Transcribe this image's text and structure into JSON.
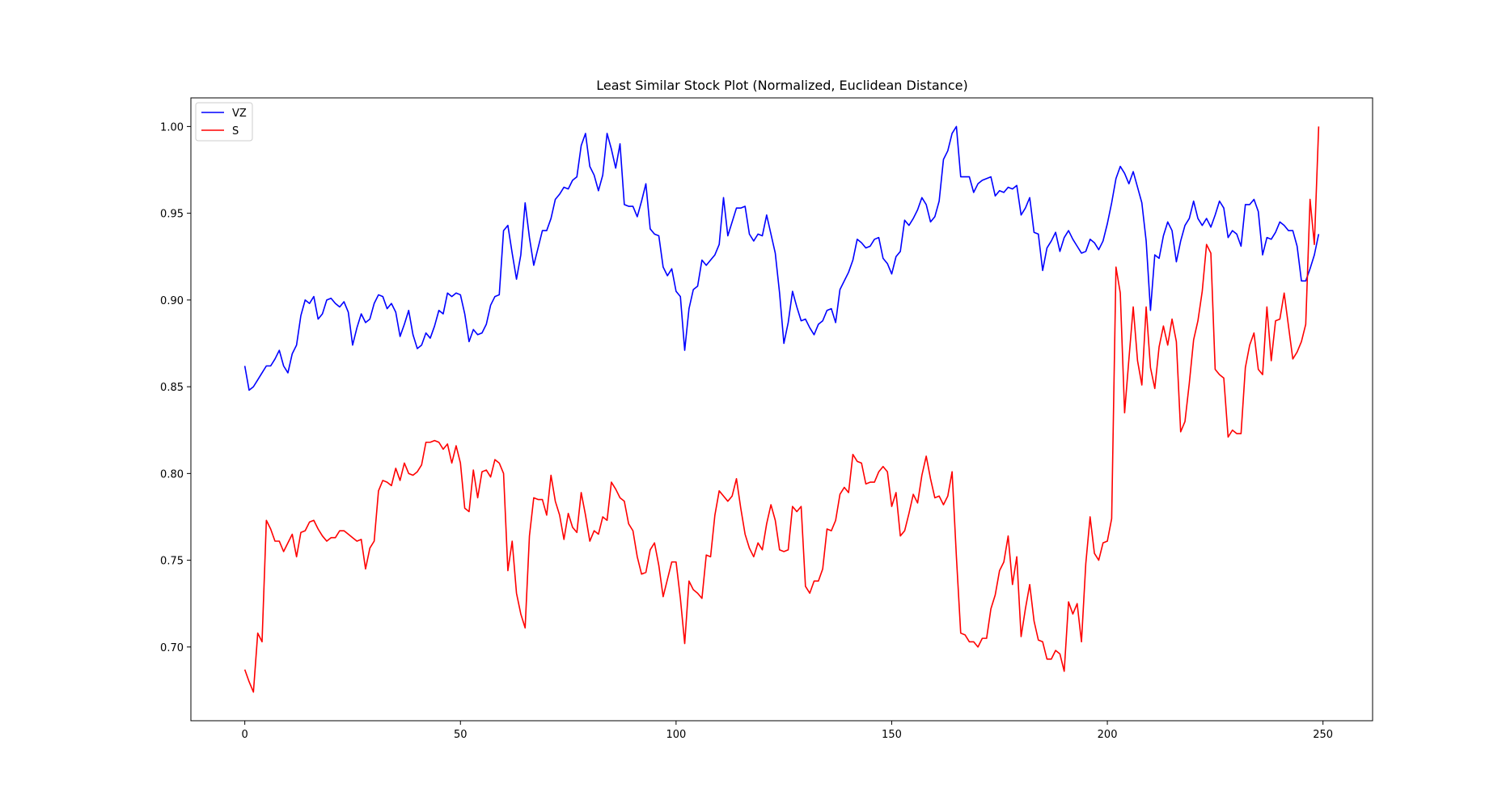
{
  "chart_data": {
    "type": "line",
    "title": "Least Similar Stock Plot (Normalized, Euclidean Distance)",
    "xlabel": "",
    "ylabel": "",
    "xlim": [
      -12.5,
      261.5
    ],
    "ylim": [
      0.6575,
      1.0165
    ],
    "x_ticks": [
      0,
      50,
      100,
      150,
      200,
      250
    ],
    "y_ticks": [
      0.7,
      0.75,
      0.8,
      0.85,
      0.9,
      0.95,
      1.0
    ],
    "x_tick_labels": [
      "0",
      "50",
      "100",
      "150",
      "200",
      "250"
    ],
    "y_tick_labels": [
      "0.70",
      "0.75",
      "0.80",
      "0.85",
      "0.90",
      "0.95",
      "1.00"
    ],
    "grid": false,
    "legend_position": "top-left",
    "x_start": 0,
    "series": [
      {
        "name": "VZ",
        "color": "#0000ff",
        "values": [
          0.862,
          0.848,
          0.85,
          0.854,
          0.858,
          0.862,
          0.862,
          0.866,
          0.871,
          0.862,
          0.858,
          0.869,
          0.874,
          0.891,
          0.9,
          0.898,
          0.902,
          0.889,
          0.892,
          0.9,
          0.901,
          0.898,
          0.896,
          0.899,
          0.893,
          0.874,
          0.884,
          0.892,
          0.887,
          0.889,
          0.898,
          0.903,
          0.902,
          0.895,
          0.898,
          0.893,
          0.879,
          0.886,
          0.894,
          0.88,
          0.872,
          0.874,
          0.881,
          0.878,
          0.885,
          0.894,
          0.892,
          0.904,
          0.902,
          0.904,
          0.903,
          0.892,
          0.876,
          0.883,
          0.88,
          0.881,
          0.886,
          0.897,
          0.902,
          0.903,
          0.94,
          0.943,
          0.927,
          0.912,
          0.926,
          0.956,
          0.936,
          0.92,
          0.93,
          0.94,
          0.94,
          0.947,
          0.958,
          0.961,
          0.965,
          0.964,
          0.969,
          0.971,
          0.989,
          0.996,
          0.977,
          0.972,
          0.963,
          0.972,
          0.996,
          0.987,
          0.976,
          0.99,
          0.955,
          0.954,
          0.954,
          0.948,
          0.957,
          0.967,
          0.941,
          0.938,
          0.937,
          0.919,
          0.914,
          0.918,
          0.905,
          0.902,
          0.871,
          0.895,
          0.906,
          0.908,
          0.923,
          0.92,
          0.923,
          0.926,
          0.932,
          0.959,
          0.937,
          0.945,
          0.953,
          0.953,
          0.954,
          0.938,
          0.934,
          0.938,
          0.937,
          0.949,
          0.938,
          0.927,
          0.904,
          0.875,
          0.887,
          0.905,
          0.896,
          0.888,
          0.889,
          0.884,
          0.88,
          0.886,
          0.888,
          0.894,
          0.895,
          0.887,
          0.906,
          0.911,
          0.916,
          0.923,
          0.935,
          0.933,
          0.93,
          0.931,
          0.935,
          0.936,
          0.924,
          0.921,
          0.915,
          0.925,
          0.928,
          0.946,
          0.943,
          0.947,
          0.952,
          0.959,
          0.955,
          0.945,
          0.948,
          0.957,
          0.981,
          0.986,
          0.996,
          1.0,
          0.971,
          0.971,
          0.971,
          0.962,
          0.967,
          0.969,
          0.97,
          0.971,
          0.96,
          0.963,
          0.962,
          0.965,
          0.964,
          0.966,
          0.949,
          0.953,
          0.959,
          0.939,
          0.938,
          0.917,
          0.93,
          0.934,
          0.939,
          0.928,
          0.936,
          0.94,
          0.935,
          0.931,
          0.927,
          0.928,
          0.935,
          0.933,
          0.929,
          0.934,
          0.944,
          0.956,
          0.97,
          0.977,
          0.973,
          0.967,
          0.974,
          0.965,
          0.956,
          0.934,
          0.894,
          0.926,
          0.924,
          0.937,
          0.945,
          0.94,
          0.922,
          0.934,
          0.943,
          0.947,
          0.957,
          0.947,
          0.943,
          0.947,
          0.942,
          0.949,
          0.957,
          0.953,
          0.936,
          0.94,
          0.938,
          0.931,
          0.955,
          0.955,
          0.958,
          0.951,
          0.926,
          0.936,
          0.935,
          0.939,
          0.945,
          0.943,
          0.94,
          0.94,
          0.931,
          0.911,
          0.911,
          0.918,
          0.926,
          0.938
        ]
      },
      {
        "name": "S",
        "color": "#ff0000",
        "values": [
          0.687,
          0.68,
          0.674,
          0.708,
          0.703,
          0.773,
          0.768,
          0.761,
          0.761,
          0.755,
          0.76,
          0.765,
          0.752,
          0.766,
          0.767,
          0.772,
          0.773,
          0.768,
          0.764,
          0.761,
          0.763,
          0.763,
          0.767,
          0.767,
          0.765,
          0.763,
          0.761,
          0.762,
          0.745,
          0.757,
          0.761,
          0.79,
          0.796,
          0.795,
          0.793,
          0.803,
          0.796,
          0.806,
          0.8,
          0.799,
          0.801,
          0.805,
          0.818,
          0.818,
          0.819,
          0.818,
          0.814,
          0.817,
          0.806,
          0.816,
          0.806,
          0.78,
          0.778,
          0.802,
          0.786,
          0.801,
          0.802,
          0.798,
          0.808,
          0.806,
          0.8,
          0.744,
          0.761,
          0.731,
          0.719,
          0.711,
          0.764,
          0.786,
          0.785,
          0.785,
          0.776,
          0.799,
          0.784,
          0.776,
          0.762,
          0.777,
          0.769,
          0.766,
          0.789,
          0.776,
          0.761,
          0.767,
          0.765,
          0.775,
          0.773,
          0.795,
          0.791,
          0.786,
          0.784,
          0.771,
          0.767,
          0.752,
          0.742,
          0.743,
          0.756,
          0.76,
          0.747,
          0.729,
          0.739,
          0.749,
          0.749,
          0.728,
          0.702,
          0.738,
          0.733,
          0.731,
          0.728,
          0.753,
          0.752,
          0.776,
          0.79,
          0.787,
          0.784,
          0.787,
          0.797,
          0.78,
          0.765,
          0.757,
          0.752,
          0.76,
          0.756,
          0.771,
          0.782,
          0.773,
          0.756,
          0.755,
          0.756,
          0.781,
          0.778,
          0.781,
          0.735,
          0.731,
          0.738,
          0.738,
          0.745,
          0.768,
          0.767,
          0.773,
          0.788,
          0.792,
          0.789,
          0.811,
          0.807,
          0.806,
          0.794,
          0.795,
          0.795,
          0.801,
          0.804,
          0.801,
          0.781,
          0.789,
          0.764,
          0.767,
          0.777,
          0.788,
          0.783,
          0.799,
          0.81,
          0.797,
          0.786,
          0.787,
          0.782,
          0.787,
          0.801,
          0.752,
          0.708,
          0.707,
          0.703,
          0.703,
          0.7,
          0.705,
          0.705,
          0.722,
          0.73,
          0.744,
          0.749,
          0.764,
          0.736,
          0.752,
          0.706,
          0.722,
          0.736,
          0.715,
          0.704,
          0.703,
          0.693,
          0.693,
          0.698,
          0.696,
          0.686,
          0.726,
          0.719,
          0.725,
          0.703,
          0.748,
          0.775,
          0.754,
          0.75,
          0.76,
          0.761,
          0.774,
          0.919,
          0.904,
          0.835,
          0.866,
          0.896,
          0.865,
          0.851,
          0.896,
          0.861,
          0.849,
          0.873,
          0.885,
          0.874,
          0.889,
          0.876,
          0.824,
          0.83,
          0.852,
          0.877,
          0.888,
          0.905,
          0.932,
          0.927,
          0.86,
          0.857,
          0.855,
          0.821,
          0.825,
          0.823,
          0.823,
          0.861,
          0.874,
          0.881,
          0.86,
          0.857,
          0.896,
          0.865,
          0.888,
          0.889,
          0.904,
          0.885,
          0.866,
          0.87,
          0.876,
          0.886,
          0.958,
          0.932,
          1.0
        ]
      }
    ]
  }
}
